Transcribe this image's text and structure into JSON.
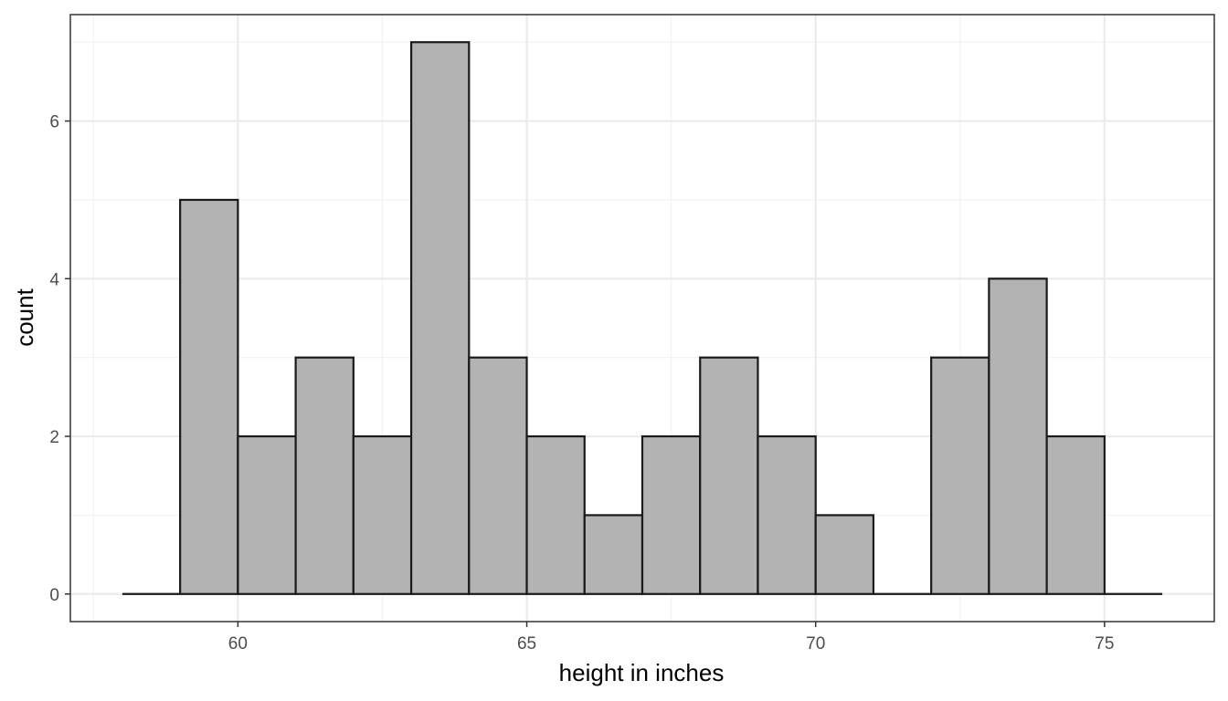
{
  "chart_data": {
    "type": "bar",
    "subtype": "histogram",
    "title": "",
    "xlabel": "height in inches",
    "ylabel": "count",
    "bin_width": 1,
    "bins": [
      {
        "x0": 58,
        "x1": 59,
        "count": 0
      },
      {
        "x0": 59,
        "x1": 60,
        "count": 5
      },
      {
        "x0": 60,
        "x1": 61,
        "count": 2
      },
      {
        "x0": 61,
        "x1": 62,
        "count": 3
      },
      {
        "x0": 62,
        "x1": 63,
        "count": 2
      },
      {
        "x0": 63,
        "x1": 64,
        "count": 7
      },
      {
        "x0": 64,
        "x1": 65,
        "count": 3
      },
      {
        "x0": 65,
        "x1": 66,
        "count": 2
      },
      {
        "x0": 66,
        "x1": 67,
        "count": 1
      },
      {
        "x0": 67,
        "x1": 68,
        "count": 2
      },
      {
        "x0": 68,
        "x1": 69,
        "count": 3
      },
      {
        "x0": 69,
        "x1": 70,
        "count": 2
      },
      {
        "x0": 70,
        "x1": 71,
        "count": 1
      },
      {
        "x0": 71,
        "x1": 72,
        "count": 0
      },
      {
        "x0": 72,
        "x1": 73,
        "count": 3
      },
      {
        "x0": 73,
        "x1": 74,
        "count": 4
      },
      {
        "x0": 74,
        "x1": 75,
        "count": 2
      },
      {
        "x0": 75,
        "x1": 76,
        "count": 0
      }
    ],
    "xlim": [
      57.1,
      76.9
    ],
    "ylim": [
      -0.35,
      7.35
    ],
    "x_ticks": [
      60,
      65,
      70,
      75
    ],
    "y_ticks": [
      0,
      2,
      4,
      6
    ],
    "grid": true,
    "legend": "none",
    "colors": {
      "bar_fill": "#b3b3b3",
      "bar_outline": "#1a1a1a",
      "grid_major": "#ebebeb",
      "grid_minor": "#f2f2f2",
      "panel_border": "#333333",
      "background": "#ffffff"
    }
  }
}
